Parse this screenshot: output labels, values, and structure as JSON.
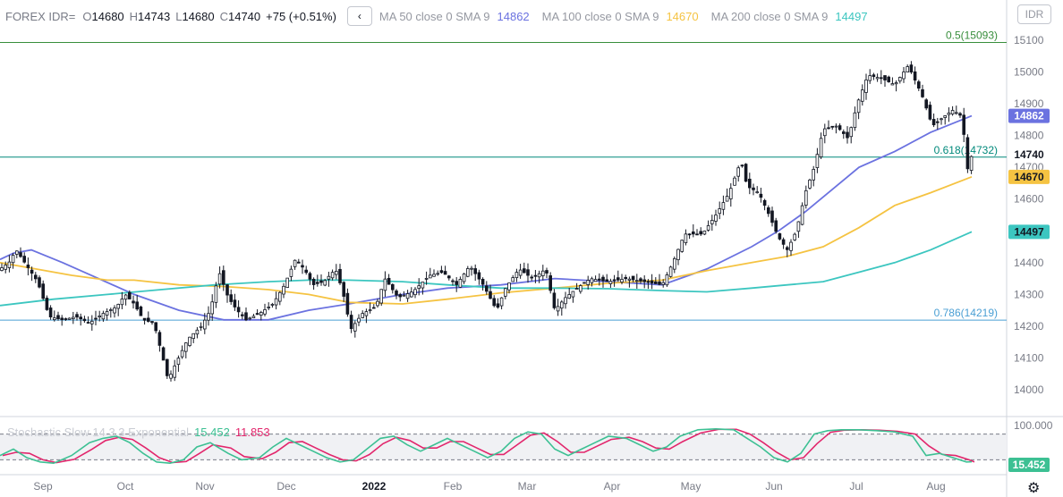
{
  "header": {
    "symbol": "FOREX IDR=",
    "open_label": "O",
    "open": "14680",
    "high_label": "H",
    "high": "14743",
    "low_label": "L",
    "low": "14680",
    "close_label": "C",
    "close": "14740",
    "change": "+75 (+0.51%)",
    "collapse_glyph": "‹",
    "ma50_label": "MA 50 close 0 SMA 9",
    "ma50_value": "14862",
    "ma50_color": "#6b72e0",
    "ma100_label": "MA 100 close 0 SMA 9",
    "ma100_value": "14670",
    "ma100_color": "#f5c342",
    "ma200_label": "MA 200 close 0 SMA 9",
    "ma200_value": "14497",
    "ma200_color": "#3cc6c0"
  },
  "currency_button": "IDR",
  "price_axis_ticks": [
    "15100",
    "15000",
    "14900",
    "14800",
    "14700",
    "14600",
    "14400",
    "14300",
    "14200",
    "14100",
    "14000"
  ],
  "time_axis_ticks": [
    "Sep",
    "Oct",
    "Nov",
    "Dec",
    "2022",
    "Feb",
    "Mar",
    "Apr",
    "May",
    "Jun",
    "Jul",
    "Aug"
  ],
  "fib_levels": [
    {
      "label": "0.5(15093)",
      "price": 15093,
      "color": "#388e3c"
    },
    {
      "label": "0.618(14732)",
      "price": 14732,
      "color": "#00897b"
    },
    {
      "label": "0.786(14219)",
      "price": 14219,
      "color": "#4a9fd4"
    }
  ],
  "price_badges": [
    {
      "text": "14862",
      "price": 14862,
      "bg": "#6b72e0",
      "fg": "#ffffff"
    },
    {
      "text": "14740",
      "price": 14740,
      "bg": "#ffffff",
      "fg": "#131722"
    },
    {
      "text": "14670",
      "price": 14670,
      "bg": "#f5c342",
      "fg": "#131722"
    },
    {
      "text": "14497",
      "price": 14497,
      "bg": "#3cc6c0",
      "fg": "#131722"
    }
  ],
  "stochastic": {
    "label": "Stochastic Slow 14 3 3 Exponential",
    "k_value": "15.452",
    "d_value": "11.853",
    "k_color": "#3cc093",
    "d_color": "#e2266c",
    "axis_top": "100.000",
    "badge": "15.452",
    "upper_band": 80,
    "lower_band": 20
  },
  "chart_data": {
    "type": "candlestick",
    "y_range": [
      13950,
      15150
    ],
    "series": [
      {
        "name": "MA 50",
        "points": [
          [
            0,
            14410
          ],
          [
            15,
            14430
          ],
          [
            35,
            14440
          ],
          [
            70,
            14400
          ],
          [
            110,
            14350
          ],
          [
            150,
            14300
          ],
          [
            200,
            14250
          ],
          [
            250,
            14220
          ],
          [
            300,
            14220
          ],
          [
            345,
            14250
          ],
          [
            390,
            14270
          ],
          [
            450,
            14300
          ],
          [
            500,
            14320
          ],
          [
            560,
            14330
          ],
          [
            620,
            14350
          ],
          [
            680,
            14340
          ],
          [
            740,
            14330
          ],
          [
            790,
            14380
          ],
          [
            840,
            14450
          ],
          [
            870,
            14500
          ],
          [
            900,
            14560
          ],
          [
            930,
            14630
          ],
          [
            960,
            14700
          ],
          [
            1000,
            14750
          ],
          [
            1040,
            14810
          ],
          [
            1086,
            14862
          ]
        ]
      },
      {
        "name": "MA 100",
        "points": [
          [
            0,
            14400
          ],
          [
            40,
            14380
          ],
          [
            80,
            14360
          ],
          [
            120,
            14345
          ],
          [
            150,
            14345
          ],
          [
            200,
            14330
          ],
          [
            250,
            14325
          ],
          [
            300,
            14315
          ],
          [
            345,
            14300
          ],
          [
            390,
            14275
          ],
          [
            450,
            14270
          ],
          [
            500,
            14285
          ],
          [
            560,
            14305
          ],
          [
            620,
            14320
          ],
          [
            680,
            14335
          ],
          [
            740,
            14345
          ],
          [
            790,
            14375
          ],
          [
            840,
            14400
          ],
          [
            880,
            14420
          ],
          [
            920,
            14450
          ],
          [
            960,
            14510
          ],
          [
            1000,
            14580
          ],
          [
            1040,
            14620
          ],
          [
            1086,
            14670
          ]
        ]
      },
      {
        "name": "MA 200",
        "points": [
          [
            0,
            14265
          ],
          [
            60,
            14285
          ],
          [
            120,
            14300
          ],
          [
            180,
            14315
          ],
          [
            240,
            14330
          ],
          [
            300,
            14340
          ],
          [
            345,
            14345
          ],
          [
            390,
            14345
          ],
          [
            450,
            14340
          ],
          [
            500,
            14330
          ],
          [
            560,
            14320
          ],
          [
            620,
            14320
          ],
          [
            680,
            14318
          ],
          [
            740,
            14312
          ],
          [
            790,
            14308
          ],
          [
            840,
            14320
          ],
          [
            880,
            14330
          ],
          [
            920,
            14340
          ],
          [
            960,
            14370
          ],
          [
            1000,
            14400
          ],
          [
            1040,
            14440
          ],
          [
            1086,
            14497
          ]
        ]
      }
    ],
    "price_path": [
      [
        0,
        14380
      ],
      [
        10,
        14400
      ],
      [
        18,
        14440
      ],
      [
        30,
        14390
      ],
      [
        42,
        14340
      ],
      [
        55,
        14230
      ],
      [
        70,
        14220
      ],
      [
        85,
        14230
      ],
      [
        100,
        14210
      ],
      [
        115,
        14240
      ],
      [
        130,
        14260
      ],
      [
        140,
        14300
      ],
      [
        150,
        14270
      ],
      [
        160,
        14220
      ],
      [
        172,
        14210
      ],
      [
        182,
        14100
      ],
      [
        188,
        14030
      ],
      [
        196,
        14080
      ],
      [
        210,
        14160
      ],
      [
        225,
        14200
      ],
      [
        235,
        14250
      ],
      [
        245,
        14370
      ],
      [
        255,
        14290
      ],
      [
        265,
        14250
      ],
      [
        275,
        14220
      ],
      [
        290,
        14240
      ],
      [
        305,
        14270
      ],
      [
        318,
        14330
      ],
      [
        330,
        14410
      ],
      [
        340,
        14380
      ],
      [
        350,
        14330
      ],
      [
        362,
        14340
      ],
      [
        375,
        14380
      ],
      [
        383,
        14310
      ],
      [
        392,
        14190
      ],
      [
        405,
        14240
      ],
      [
        420,
        14260
      ],
      [
        430,
        14350
      ],
      [
        445,
        14290
      ],
      [
        462,
        14310
      ],
      [
        480,
        14360
      ],
      [
        495,
        14370
      ],
      [
        510,
        14330
      ],
      [
        525,
        14390
      ],
      [
        540,
        14330
      ],
      [
        555,
        14250
      ],
      [
        565,
        14320
      ],
      [
        580,
        14380
      ],
      [
        595,
        14350
      ],
      [
        610,
        14380
      ],
      [
        620,
        14250
      ],
      [
        632,
        14290
      ],
      [
        645,
        14320
      ],
      [
        660,
        14350
      ],
      [
        680,
        14340
      ],
      [
        700,
        14350
      ],
      [
        720,
        14340
      ],
      [
        740,
        14330
      ],
      [
        752,
        14400
      ],
      [
        765,
        14490
      ],
      [
        785,
        14490
      ],
      [
        800,
        14550
      ],
      [
        815,
        14620
      ],
      [
        828,
        14720
      ],
      [
        835,
        14640
      ],
      [
        848,
        14620
      ],
      [
        858,
        14560
      ],
      [
        870,
        14480
      ],
      [
        880,
        14440
      ],
      [
        890,
        14500
      ],
      [
        900,
        14620
      ],
      [
        910,
        14700
      ],
      [
        920,
        14820
      ],
      [
        935,
        14830
      ],
      [
        948,
        14790
      ],
      [
        958,
        14900
      ],
      [
        970,
        14990
      ],
      [
        985,
        14980
      ],
      [
        1000,
        14960
      ],
      [
        1015,
        15020
      ],
      [
        1030,
        14930
      ],
      [
        1042,
        14830
      ],
      [
        1055,
        14860
      ],
      [
        1065,
        14880
      ],
      [
        1075,
        14860
      ],
      [
        1082,
        14680
      ],
      [
        1086,
        14740
      ]
    ],
    "stoch_k": [
      [
        0,
        30
      ],
      [
        15,
        45
      ],
      [
        30,
        25
      ],
      [
        45,
        15
      ],
      [
        60,
        12
      ],
      [
        80,
        30
      ],
      [
        100,
        60
      ],
      [
        115,
        70
      ],
      [
        130,
        75
      ],
      [
        145,
        60
      ],
      [
        160,
        35
      ],
      [
        175,
        15
      ],
      [
        190,
        12
      ],
      [
        205,
        20
      ],
      [
        220,
        50
      ],
      [
        235,
        60
      ],
      [
        255,
        35
      ],
      [
        270,
        20
      ],
      [
        290,
        25
      ],
      [
        305,
        50
      ],
      [
        320,
        70
      ],
      [
        335,
        55
      ],
      [
        350,
        40
      ],
      [
        365,
        25
      ],
      [
        380,
        15
      ],
      [
        395,
        20
      ],
      [
        410,
        45
      ],
      [
        425,
        70
      ],
      [
        440,
        75
      ],
      [
        455,
        55
      ],
      [
        470,
        40
      ],
      [
        485,
        55
      ],
      [
        500,
        70
      ],
      [
        515,
        55
      ],
      [
        530,
        40
      ],
      [
        545,
        25
      ],
      [
        560,
        40
      ],
      [
        575,
        70
      ],
      [
        590,
        85
      ],
      [
        605,
        80
      ],
      [
        620,
        45
      ],
      [
        635,
        30
      ],
      [
        650,
        45
      ],
      [
        665,
        60
      ],
      [
        680,
        75
      ],
      [
        700,
        70
      ],
      [
        715,
        55
      ],
      [
        730,
        40
      ],
      [
        745,
        50
      ],
      [
        760,
        75
      ],
      [
        780,
        90
      ],
      [
        800,
        92
      ],
      [
        820,
        90
      ],
      [
        835,
        70
      ],
      [
        850,
        50
      ],
      [
        865,
        25
      ],
      [
        880,
        15
      ],
      [
        895,
        35
      ],
      [
        910,
        80
      ],
      [
        925,
        88
      ],
      [
        940,
        90
      ],
      [
        960,
        90
      ],
      [
        980,
        88
      ],
      [
        1000,
        85
      ],
      [
        1020,
        75
      ],
      [
        1035,
        30
      ],
      [
        1050,
        35
      ],
      [
        1065,
        25
      ],
      [
        1080,
        15
      ],
      [
        1086,
        15.452
      ]
    ]
  }
}
